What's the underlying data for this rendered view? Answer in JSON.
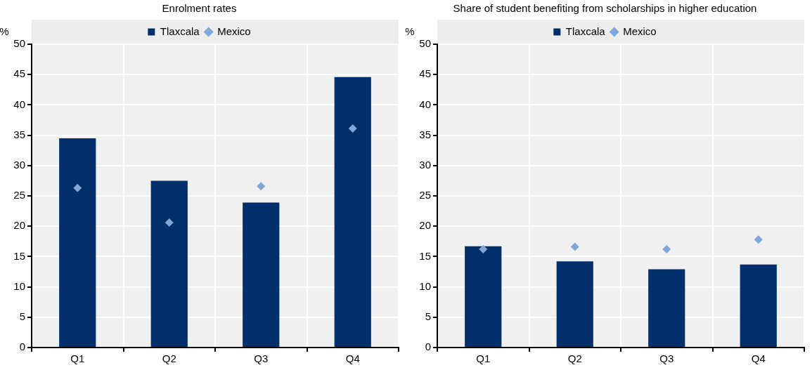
{
  "chart_data": [
    {
      "type": "bar",
      "title": "Enrolment rates",
      "ylabel": "%",
      "categories": [
        "Q1",
        "Q2",
        "Q3",
        "Q4"
      ],
      "series": [
        {
          "name": "Tlaxcala",
          "color": "#002f6c",
          "values": [
            34.5,
            27.5,
            23.9,
            44.6
          ]
        },
        {
          "name": "Mexico",
          "type": "scatter",
          "color": "#7fa7dc",
          "x": [
            "Q1",
            "Q2",
            "Q3",
            "Q4"
          ],
          "values": [
            26.3,
            20.6,
            26.6,
            36.1
          ]
        }
      ],
      "ylim": [
        0,
        50
      ],
      "yticks": [
        0,
        5,
        10,
        15,
        20,
        25,
        30,
        35,
        40,
        45,
        50
      ],
      "grid": true,
      "legend": "top",
      "marker": "diamond"
    },
    {
      "type": "bar",
      "title": "Share of student benefiting from scholarships in higher education",
      "ylabel": "%",
      "categories": [
        "Q1",
        "Q2",
        "Q3",
        "Q4"
      ],
      "series": [
        {
          "name": "Tlaxcala",
          "color": "#002f6c",
          "values": [
            16.7,
            14.2,
            12.9,
            13.7
          ]
        },
        {
          "name": "Mexico",
          "type": "scatter",
          "color": "#7fa7dc",
          "x": [
            "Q1",
            "Q2",
            "Q3",
            "Q4"
          ],
          "values": [
            16.2,
            16.6,
            16.2,
            17.8
          ]
        }
      ],
      "ylim": [
        0,
        50
      ],
      "yticks": [
        0,
        5,
        10,
        15,
        20,
        25,
        30,
        35,
        40,
        45,
        50
      ],
      "grid": true,
      "legend": "top",
      "marker": "diamond"
    }
  ]
}
